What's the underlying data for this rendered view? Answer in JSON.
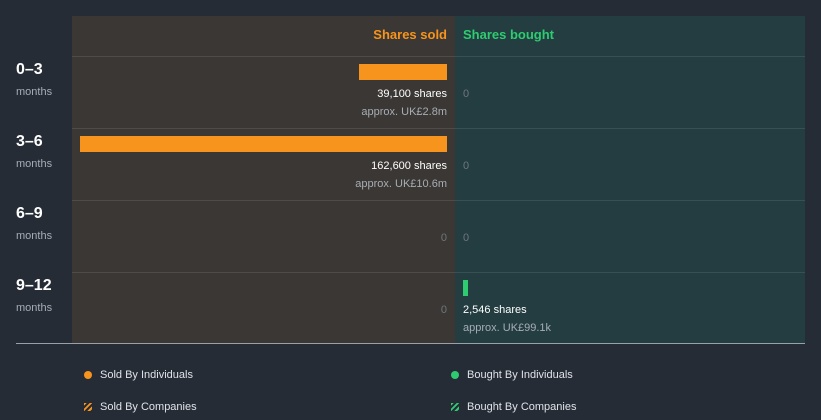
{
  "colors": {
    "sold": "#f7941d",
    "bought": "#2ecc71"
  },
  "chart_data": {
    "type": "bar",
    "orientation": "horizontal-diverging",
    "headers": {
      "sold": "Shares sold",
      "bought": "Shares bought"
    },
    "categories": [
      {
        "label": "0–3",
        "sub": "months"
      },
      {
        "label": "3–6",
        "sub": "months"
      },
      {
        "label": "6–9",
        "sub": "months"
      },
      {
        "label": "9–12",
        "sub": "months"
      }
    ],
    "series": [
      {
        "name": "Shares sold",
        "values": [
          39100,
          162600,
          0,
          0
        ],
        "labels": [
          "39,100 shares",
          "162,600 shares",
          "0",
          "0"
        ],
        "approx": [
          "approx. UK£2.8m",
          "approx. UK£10.6m",
          "",
          ""
        ]
      },
      {
        "name": "Shares bought",
        "values": [
          0,
          0,
          0,
          2546
        ],
        "labels": [
          "0",
          "0",
          "0",
          "2,546 shares"
        ],
        "approx": [
          "",
          "",
          "",
          "approx. UK£99.1k"
        ]
      }
    ],
    "legend": [
      {
        "label": "Sold By Individuals",
        "kind": "dot",
        "color": "#f7941d"
      },
      {
        "label": "Bought By Individuals",
        "kind": "dot",
        "color": "#2ecc71"
      },
      {
        "label": "Sold By Companies",
        "kind": "hatch",
        "color": "#f7941d"
      },
      {
        "label": "Bought By Companies",
        "kind": "hatch",
        "color": "#2ecc71"
      }
    ]
  }
}
